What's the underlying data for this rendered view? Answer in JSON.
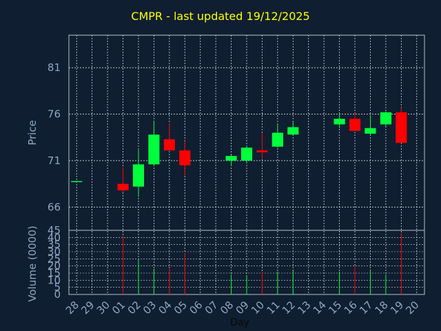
{
  "chart_data": {
    "type": "candlestick",
    "title": "CMPR - last updated 19/12/2025",
    "xlabel": "Day",
    "price_panel": {
      "ylabel": "Price",
      "ylim": [
        63.5,
        84.5
      ],
      "yticks": [
        66,
        71,
        76,
        81
      ]
    },
    "volume_panel": {
      "ylabel": "Volume (0000)",
      "ylim": [
        0,
        45
      ],
      "yticks": [
        0,
        5,
        10,
        15,
        20,
        25,
        30,
        35,
        40,
        45
      ]
    },
    "x_tick_labels": [
      "28",
      "29",
      "30",
      "01",
      "02",
      "03",
      "04",
      "05",
      "06",
      "07",
      "08",
      "09",
      "10",
      "11",
      "12",
      "13",
      "14",
      "15",
      "16",
      "17",
      "18",
      "19",
      "20"
    ],
    "up_color": "#00ff3c",
    "down_color": "#ff0000",
    "grid": true,
    "candles": [
      {
        "day": "28",
        "open": 68.8,
        "high": 68.8,
        "low": 68.8,
        "close": 68.8,
        "volume": 0
      },
      {
        "day": "01",
        "open": 68.5,
        "high": 70.3,
        "low": 67.6,
        "close": 67.8,
        "volume": 41
      },
      {
        "day": "02",
        "open": 68.2,
        "high": 72.3,
        "low": 67.1,
        "close": 70.6,
        "volume": 25
      },
      {
        "day": "03",
        "open": 70.6,
        "high": 75.3,
        "low": 70.4,
        "close": 73.8,
        "volume": 18
      },
      {
        "day": "04",
        "open": 73.3,
        "high": 75.0,
        "low": 72.0,
        "close": 72.1,
        "volume": 18
      },
      {
        "day": "05",
        "open": 72.1,
        "high": 73.1,
        "low": 69.4,
        "close": 70.5,
        "volume": 29
      },
      {
        "day": "08",
        "open": 71.0,
        "high": 71.6,
        "low": 70.4,
        "close": 71.5,
        "volume": 14
      },
      {
        "day": "09",
        "open": 71.0,
        "high": 72.5,
        "low": 70.8,
        "close": 72.4,
        "volume": 13
      },
      {
        "day": "10",
        "open": 72.1,
        "high": 73.9,
        "low": 71.2,
        "close": 71.9,
        "volume": 16
      },
      {
        "day": "11",
        "open": 72.5,
        "high": 75.0,
        "low": 72.4,
        "close": 74.0,
        "volume": 16
      },
      {
        "day": "12",
        "open": 73.8,
        "high": 75.2,
        "low": 73.7,
        "close": 74.6,
        "volume": 17
      },
      {
        "day": "15",
        "open": 74.9,
        "high": 76.1,
        "low": 74.5,
        "close": 75.5,
        "volume": 16
      },
      {
        "day": "16",
        "open": 75.5,
        "high": 76.1,
        "low": 74.2,
        "close": 74.2,
        "volume": 20
      },
      {
        "day": "17",
        "open": 73.9,
        "high": 75.9,
        "low": 73.8,
        "close": 74.5,
        "volume": 17
      },
      {
        "day": "18",
        "open": 74.9,
        "high": 76.3,
        "low": 74.7,
        "close": 76.2,
        "volume": 14
      },
      {
        "day": "19",
        "open": 76.2,
        "high": 76.7,
        "low": 72.9,
        "close": 72.9,
        "volume": 43
      }
    ]
  }
}
